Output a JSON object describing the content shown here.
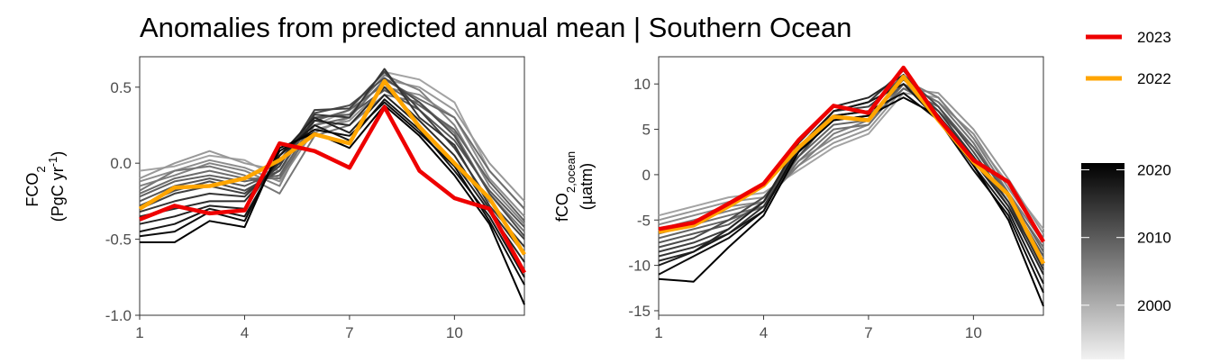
{
  "title": "Anomalies from predicted annual mean | Southern Ocean",
  "colors": {
    "y2023": "#ee0000",
    "y2022": "#ffa500",
    "grey_old": "#d9d9d9",
    "grey_new": "#000000"
  },
  "legend": {
    "items": [
      "2023",
      "2022"
    ]
  },
  "colorbar": {
    "ticks": [
      "2000",
      "2010",
      "2020"
    ],
    "years": [
      1992,
      2021
    ]
  },
  "chart_data": [
    {
      "type": "line",
      "ylabel": "FCO2 (PgC yr-1)",
      "xlim": [
        1,
        12
      ],
      "ylim": [
        -1.0,
        0.7
      ],
      "xticks": [
        "1",
        "4",
        "7",
        "10"
      ],
      "yticks": [
        "-1.0",
        "-0.5",
        "0.0",
        "0.5"
      ],
      "x": [
        1,
        2,
        3,
        4,
        5,
        6,
        7,
        8,
        9,
        10,
        11,
        12
      ],
      "series": [
        {
          "name": "2023",
          "values": [
            -0.37,
            -0.28,
            -0.33,
            -0.31,
            0.13,
            0.08,
            -0.03,
            0.37,
            -0.05,
            -0.23,
            -0.3,
            -0.72
          ]
        },
        {
          "name": "2022",
          "values": [
            -0.3,
            -0.16,
            -0.15,
            -0.1,
            0.02,
            0.19,
            0.13,
            0.54,
            0.24,
            0.0,
            -0.23,
            -0.6
          ]
        }
      ],
      "background_series": [
        [
          -0.05,
          -0.02,
          0.05,
          0.02,
          -0.1,
          0.25,
          0.35,
          0.6,
          0.55,
          0.4,
          -0.05,
          -0.3
        ],
        [
          -0.1,
          0.0,
          0.08,
          0.0,
          -0.05,
          0.2,
          0.3,
          0.55,
          0.5,
          0.35,
          0.0,
          -0.25
        ],
        [
          -0.12,
          -0.05,
          0.02,
          -0.03,
          -0.12,
          0.22,
          0.28,
          0.5,
          0.45,
          0.3,
          -0.1,
          -0.35
        ],
        [
          -0.15,
          -0.08,
          0.0,
          -0.05,
          -0.15,
          0.3,
          0.32,
          0.58,
          0.48,
          0.25,
          -0.15,
          -0.4
        ],
        [
          -0.18,
          -0.05,
          -0.02,
          -0.08,
          -0.2,
          0.18,
          0.25,
          0.45,
          0.4,
          0.2,
          -0.2,
          -0.45
        ],
        [
          -0.2,
          -0.1,
          -0.05,
          -0.1,
          -0.1,
          0.25,
          0.3,
          0.55,
          0.42,
          0.3,
          -0.05,
          -0.3
        ],
        [
          -0.22,
          -0.12,
          -0.08,
          -0.12,
          -0.08,
          0.28,
          0.35,
          0.52,
          0.38,
          0.22,
          -0.12,
          -0.38
        ],
        [
          -0.25,
          -0.15,
          -0.1,
          -0.15,
          -0.05,
          0.3,
          0.32,
          0.48,
          0.35,
          0.15,
          -0.18,
          -0.42
        ],
        [
          -0.28,
          -0.18,
          -0.12,
          -0.18,
          -0.05,
          0.33,
          0.38,
          0.56,
          0.4,
          0.18,
          -0.2,
          -0.48
        ],
        [
          -0.3,
          -0.2,
          -0.15,
          -0.2,
          -0.02,
          0.35,
          0.36,
          0.6,
          0.35,
          0.1,
          -0.25,
          -0.5
        ],
        [
          -0.32,
          -0.25,
          -0.2,
          -0.22,
          0.0,
          0.32,
          0.3,
          0.62,
          0.3,
          0.12,
          -0.28,
          -0.55
        ],
        [
          -0.35,
          -0.3,
          -0.25,
          -0.25,
          0.02,
          0.28,
          0.25,
          0.5,
          0.28,
          0.05,
          -0.3,
          -0.6
        ],
        [
          -0.4,
          -0.35,
          -0.28,
          -0.3,
          0.05,
          0.3,
          0.2,
          0.45,
          0.25,
          0.0,
          -0.32,
          -0.65
        ],
        [
          -0.45,
          -0.4,
          -0.3,
          -0.35,
          0.05,
          0.25,
          0.15,
          0.42,
          0.22,
          -0.05,
          -0.35,
          -0.75
        ],
        [
          -0.48,
          -0.45,
          -0.32,
          -0.38,
          0.08,
          0.22,
          0.18,
          0.4,
          0.2,
          -0.02,
          -0.38,
          -0.8
        ],
        [
          -0.52,
          -0.52,
          -0.38,
          -0.42,
          0.1,
          0.2,
          0.1,
          0.38,
          0.18,
          -0.08,
          -0.4,
          -0.93
        ]
      ]
    },
    {
      "type": "line",
      "ylabel": "fCO2,ocean (µatm)",
      "xlim": [
        1,
        12
      ],
      "ylim": [
        -15.5,
        13
      ],
      "xticks": [
        "1",
        "4",
        "7",
        "10"
      ],
      "yticks": [
        "-15",
        "-10",
        "-5",
        "0",
        "5",
        "10"
      ],
      "x": [
        1,
        2,
        3,
        4,
        5,
        6,
        7,
        8,
        9,
        10,
        11,
        12
      ],
      "series": [
        {
          "name": "2023",
          "values": [
            -6.0,
            -5.3,
            -3.2,
            -1.0,
            3.8,
            7.6,
            6.8,
            11.8,
            6.2,
            1.6,
            -0.8,
            -7.4
          ]
        },
        {
          "name": "2022",
          "values": [
            -6.3,
            -5.6,
            -3.5,
            -1.2,
            3.0,
            6.4,
            6.0,
            10.8,
            6.0,
            1.4,
            -2.2,
            -9.8
          ]
        }
      ],
      "background_series": [
        [
          -4.5,
          -3.5,
          -2.5,
          -2.0,
          0.5,
          3.0,
          4.5,
          9.0,
          8.5,
          4.0,
          -1.0,
          -6.0
        ],
        [
          -5.0,
          -4.0,
          -3.0,
          -2.5,
          1.0,
          3.5,
          5.0,
          9.5,
          9.0,
          5.0,
          -0.5,
          -6.5
        ],
        [
          -5.5,
          -4.5,
          -3.5,
          -3.0,
          1.5,
          4.0,
          5.5,
          10.0,
          8.0,
          4.5,
          -1.5,
          -7.0
        ],
        [
          -6.0,
          -5.0,
          -4.0,
          -3.0,
          1.0,
          4.5,
          6.0,
          10.5,
          8.5,
          4.0,
          -2.0,
          -7.5
        ],
        [
          -6.5,
          -5.5,
          -4.5,
          -3.5,
          1.5,
          5.0,
          5.5,
          10.0,
          8.0,
          3.5,
          -2.5,
          -8.0
        ],
        [
          -7.0,
          -6.0,
          -5.0,
          -3.5,
          2.0,
          5.5,
          6.0,
          9.5,
          7.5,
          3.0,
          -2.0,
          -8.5
        ],
        [
          -7.5,
          -6.5,
          -5.5,
          -3.0,
          2.5,
          6.0,
          6.5,
          10.0,
          7.0,
          3.0,
          -2.5,
          -9.0
        ],
        [
          -8.0,
          -7.0,
          -5.0,
          -2.5,
          2.0,
          6.5,
          7.0,
          11.0,
          7.5,
          2.5,
          -3.0,
          -9.5
        ],
        [
          -8.5,
          -7.5,
          -6.0,
          -3.0,
          3.0,
          7.0,
          7.5,
          10.5,
          7.0,
          2.0,
          -3.5,
          -10.0
        ],
        [
          -9.0,
          -8.0,
          -6.5,
          -3.5,
          2.5,
          7.0,
          8.0,
          11.5,
          6.5,
          2.0,
          -3.0,
          -10.5
        ],
        [
          -9.5,
          -8.5,
          -6.0,
          -3.0,
          3.5,
          7.5,
          8.5,
          11.0,
          6.5,
          1.5,
          -3.5,
          -11.0
        ],
        [
          -10.0,
          -8.5,
          -6.5,
          -4.0,
          3.0,
          7.0,
          8.0,
          10.0,
          6.0,
          1.0,
          -4.0,
          -12.0
        ],
        [
          -11.0,
          -9.0,
          -7.0,
          -4.0,
          3.0,
          6.5,
          7.0,
          9.0,
          6.0,
          0.5,
          -4.5,
          -13.0
        ],
        [
          -11.5,
          -11.8,
          -8.0,
          -4.5,
          2.5,
          6.0,
          6.5,
          8.5,
          6.5,
          1.0,
          -5.0,
          -14.5
        ]
      ]
    }
  ]
}
